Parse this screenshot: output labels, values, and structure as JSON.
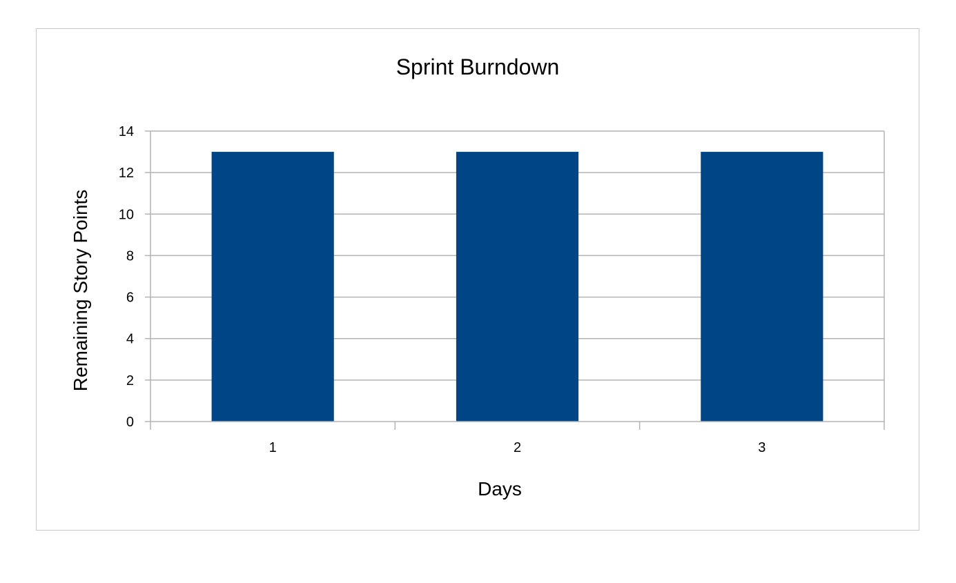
{
  "chart_data": {
    "type": "bar",
    "title": "Sprint Burndown",
    "xlabel": "Days",
    "ylabel": "Remaining Story Points",
    "categories": [
      "1",
      "2",
      "3"
    ],
    "values": [
      13,
      13,
      13
    ],
    "ylim": [
      0,
      14
    ],
    "yticks": [
      0,
      2,
      4,
      6,
      8,
      10,
      12,
      14
    ],
    "grid": true,
    "legend": "none",
    "colors": {
      "bar": "#004586",
      "grid": "#b3b3b3",
      "frame": "#c8c8c8"
    }
  }
}
